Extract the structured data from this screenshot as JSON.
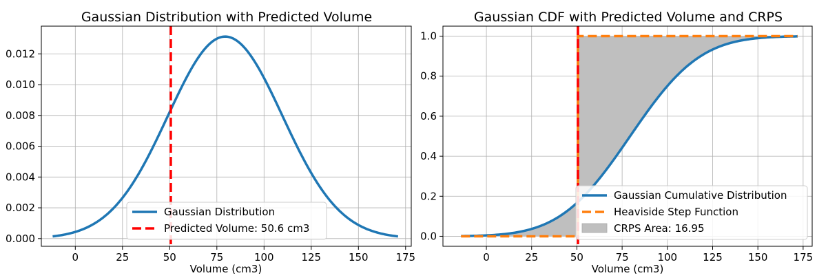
{
  "chart_data": [
    {
      "type": "line",
      "title": "Gaussian Distribution with Predicted Volume",
      "xlabel": "Volume (cm3)",
      "ylabel": "",
      "xlim": [
        -18,
        178
      ],
      "ylim": [
        -0.0005,
        0.0138
      ],
      "xticks": [
        0,
        25,
        50,
        75,
        100,
        125,
        150,
        175
      ],
      "xtick_labels": [
        "0",
        "25",
        "50",
        "75",
        "100",
        "125",
        "150",
        "175"
      ],
      "yticks": [
        0.0,
        0.002,
        0.004,
        0.006,
        0.008,
        0.01,
        0.012
      ],
      "ytick_labels": [
        "0.000",
        "0.002",
        "0.004",
        "0.006",
        "0.008",
        "0.010",
        "0.012"
      ],
      "grid": true,
      "legend_position": "lower-center",
      "distribution": {
        "mean": 79.4,
        "std": 30.4,
        "x_min": -12,
        "x_max": 171
      },
      "series": [
        {
          "name": "Gaussian Distribution",
          "color": "#1f77b4",
          "style": "solid"
        },
        {
          "name": "Predicted Volume: 50.6 cm3",
          "color": "#ff0000",
          "style": "dashed",
          "x": 50.6
        }
      ]
    },
    {
      "type": "line",
      "title": "Gaussian CDF with Predicted Volume and CRPS",
      "xlabel": "Volume (cm3)",
      "ylabel": "",
      "xlim": [
        -24,
        180
      ],
      "ylim": [
        -0.05,
        1.05
      ],
      "xticks": [
        0,
        25,
        50,
        75,
        100,
        125,
        150,
        175
      ],
      "xtick_labels": [
        "0",
        "25",
        "50",
        "75",
        "100",
        "125",
        "150",
        "175"
      ],
      "yticks": [
        0.0,
        0.2,
        0.4,
        0.6,
        0.8,
        1.0
      ],
      "ytick_labels": [
        "0.0",
        "0.2",
        "0.4",
        "0.6",
        "0.8",
        "1.0"
      ],
      "grid": true,
      "legend_position": "lower-right",
      "distribution": {
        "mean": 79.4,
        "std": 30.4,
        "x_min": -14,
        "x_max": 172
      },
      "predicted_volume": 50.6,
      "series": [
        {
          "name": "Gaussian Cumulative Distribution",
          "color": "#1f77b4",
          "style": "solid"
        },
        {
          "name": "Heaviside Step Function",
          "color": "#ff7f0e",
          "style": "dashed"
        },
        {
          "name": "CRPS Area: 16.95",
          "color": "#bfbfbf",
          "style": "fill",
          "value": 16.95
        }
      ],
      "predicted_line_color": "#ff0000"
    }
  ]
}
